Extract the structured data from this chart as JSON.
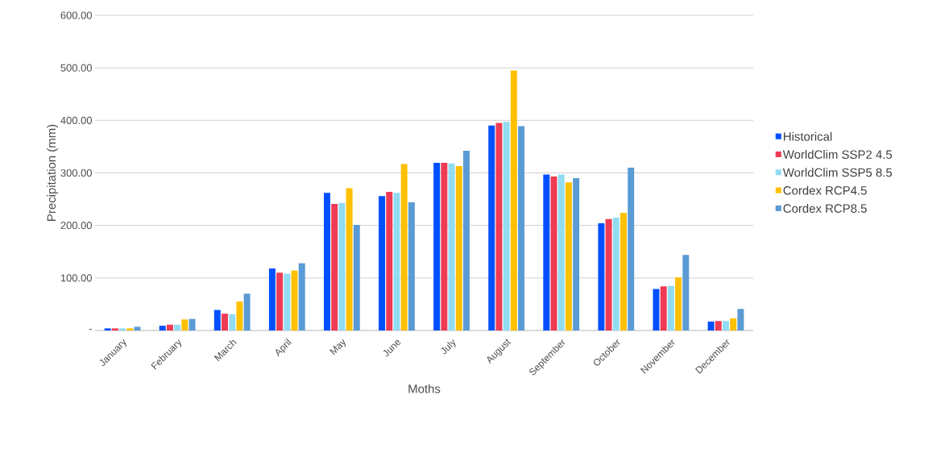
{
  "chart_data": {
    "type": "bar",
    "xlabel": "Moths",
    "ylabel": "Precipitation (mm)",
    "categories": [
      "January",
      "February",
      "March",
      "April",
      "May",
      "June",
      "July",
      "August",
      "September",
      "October",
      "November",
      "December"
    ],
    "series": [
      {
        "name": "Historical",
        "color": "#0050ff",
        "values": [
          4,
          9,
          39,
          118,
          262,
          256,
          319,
          390,
          297,
          204,
          79,
          17
        ]
      },
      {
        "name": "WorldClim SSP2 4.5",
        "color": "#ef3b54",
        "values": [
          4,
          11,
          32,
          110,
          241,
          264,
          319,
          395,
          293,
          212,
          84,
          18
        ]
      },
      {
        "name": "WorldClim SSP5 8.5",
        "color": "#92dcf2",
        "values": [
          4,
          11,
          31,
          108,
          243,
          262,
          318,
          397,
          297,
          215,
          85,
          18
        ]
      },
      {
        "name": "Cordex RCP4.5",
        "color": "#ffc000",
        "values": [
          4,
          21,
          55,
          114,
          271,
          317,
          313,
          495,
          282,
          224,
          101,
          23
        ]
      },
      {
        "name": "Cordex RCP8.5",
        "color": "#5b9bd5",
        "values": [
          7,
          22,
          70,
          128,
          201,
          244,
          342,
          389,
          290,
          310,
          144,
          41
        ]
      }
    ],
    "ylim": [
      0,
      600
    ],
    "yticks": [
      {
        "value": 0,
        "label": "-"
      },
      {
        "value": 100,
        "label": "100.00"
      },
      {
        "value": 200,
        "label": "200.00"
      },
      {
        "value": 300,
        "label": "300.00"
      },
      {
        "value": 400,
        "label": "400.00"
      },
      {
        "value": 500,
        "label": "500.00"
      },
      {
        "value": 600,
        "label": "600.00"
      }
    ],
    "grid": "y",
    "legend": "right"
  }
}
